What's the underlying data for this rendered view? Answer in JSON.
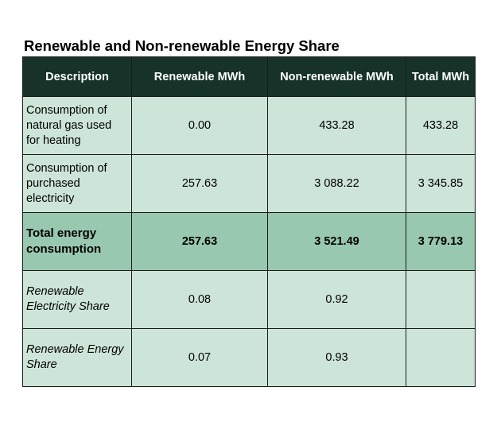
{
  "title": "Renewable and Non-renewable Energy Share",
  "headers": {
    "description": "Description",
    "renewable": "Renewable MWh",
    "non_renewable": "Non-renewable MWh",
    "total": "Total MWh"
  },
  "rows": [
    {
      "description": "Consumption of natural gas used for heating",
      "renewable": "0.00",
      "non_renewable": "433.28",
      "total": "433.28"
    },
    {
      "description": "Consumption of purchased electricity",
      "renewable": "257.63",
      "non_renewable": "3 088.22",
      "total": "3 345.85"
    },
    {
      "description": "Total energy consumption",
      "renewable": "257.63",
      "non_renewable": "3 521.49",
      "total": "3 779.13"
    },
    {
      "description": "Renewable Electricity Share",
      "renewable": "0.08",
      "non_renewable": "0.92",
      "total": ""
    },
    {
      "description": "Renewable Energy Share",
      "renewable": "0.07",
      "non_renewable": "0.93",
      "total": ""
    }
  ],
  "colors": {
    "header_bg": "#173329",
    "cell_bg": "#cde5d8",
    "total_row_bg": "#99c8b0"
  }
}
